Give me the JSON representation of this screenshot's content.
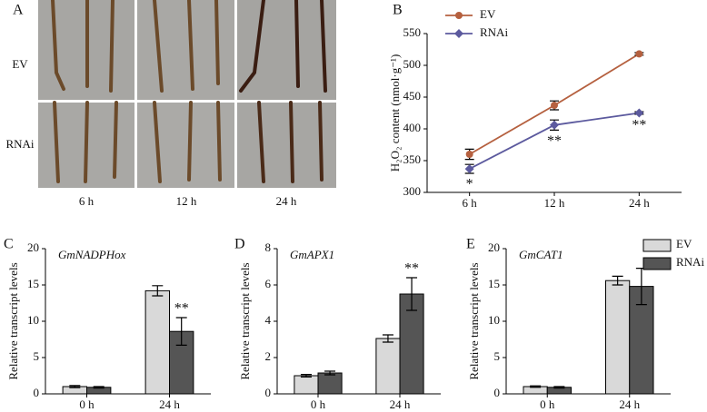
{
  "panel_a": {
    "label": "A",
    "rows": [
      "EV",
      "RNAi"
    ],
    "columns": [
      "6 h",
      "12 h",
      "24 h"
    ]
  },
  "chart_data": [
    {
      "type": "line",
      "panel": "B",
      "categories": [
        "6 h",
        "12 h",
        "24 h"
      ],
      "series": [
        {
          "name": "EV",
          "color": "#b5603f",
          "values": [
            360,
            437,
            518
          ],
          "errors": [
            8,
            7,
            2
          ]
        },
        {
          "name": "RNAi",
          "color": "#5c5a9e",
          "values": [
            337,
            406,
            425
          ],
          "errors": [
            7,
            8,
            2
          ]
        }
      ],
      "ylim": [
        300,
        550
      ],
      "yticks": [
        300,
        350,
        400,
        450,
        500,
        550
      ],
      "y_label": "H₂O₂ content (nmol·g⁻¹)",
      "legend": "upper left",
      "annotations": [
        {
          "text": "*",
          "x": "6 h",
          "series": "RNAi"
        },
        {
          "text": "**",
          "x": "12 h",
          "series": "RNAi"
        },
        {
          "text": "**",
          "x": "24 h",
          "series": "RNAi"
        }
      ]
    },
    {
      "type": "bar",
      "panel": "C",
      "title": "GmNADPHox",
      "categories": [
        "0 h",
        "24 h"
      ],
      "series": [
        {
          "name": "EV",
          "color": "#d9d9d9",
          "values": [
            1.0,
            14.2
          ],
          "errors": [
            0.15,
            0.7
          ]
        },
        {
          "name": "RNAi",
          "color": "#555555",
          "values": [
            0.9,
            8.6
          ],
          "errors": [
            0.1,
            1.9
          ]
        }
      ],
      "ylim": [
        0,
        20
      ],
      "yticks": [
        0,
        5,
        10,
        15,
        20
      ],
      "y_label": "Relative transcript levels",
      "annotations": [
        {
          "text": "**",
          "x": "24 h",
          "series": "RNAi"
        }
      ]
    },
    {
      "type": "bar",
      "panel": "D",
      "title": "GmAPX1",
      "categories": [
        "0 h",
        "24 h"
      ],
      "series": [
        {
          "name": "EV",
          "color": "#d9d9d9",
          "values": [
            1.0,
            3.05
          ],
          "errors": [
            0.07,
            0.2
          ]
        },
        {
          "name": "RNAi",
          "color": "#555555",
          "values": [
            1.15,
            5.5
          ],
          "errors": [
            0.1,
            0.9
          ]
        }
      ],
      "ylim": [
        0,
        8
      ],
      "yticks": [
        0,
        2,
        4,
        6,
        8
      ],
      "y_label": "Relative transcript levels",
      "annotations": [
        {
          "text": "**",
          "x": "24 h",
          "series": "RNAi"
        }
      ]
    },
    {
      "type": "bar",
      "panel": "E",
      "title": "GmCAT1",
      "categories": [
        "0 h",
        "24 h"
      ],
      "series": [
        {
          "name": "EV",
          "color": "#d9d9d9",
          "values": [
            1.0,
            15.6
          ],
          "errors": [
            0.1,
            0.6
          ]
        },
        {
          "name": "RNAi",
          "color": "#555555",
          "values": [
            0.9,
            14.8
          ],
          "errors": [
            0.1,
            2.5
          ]
        }
      ],
      "ylim": [
        0,
        20
      ],
      "yticks": [
        0,
        5,
        10,
        15,
        20
      ],
      "y_label": "Relative transcript levels",
      "legend": "upper right"
    }
  ]
}
